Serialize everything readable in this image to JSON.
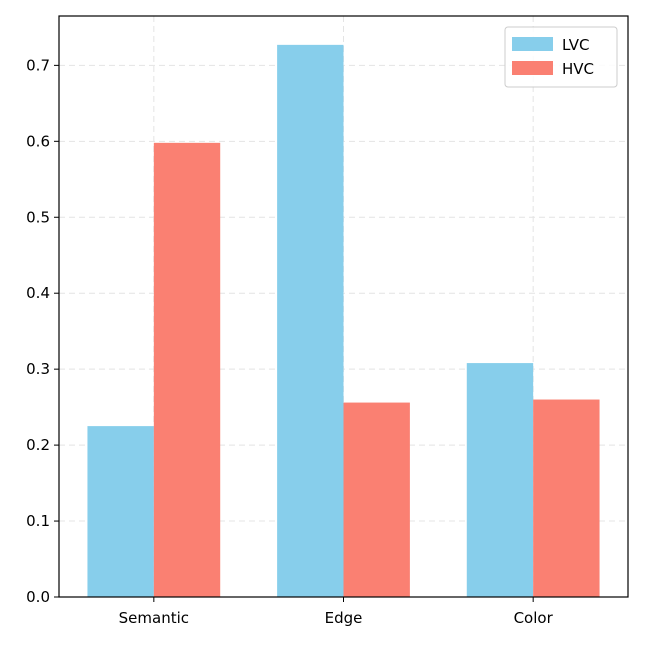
{
  "chart_data": {
    "type": "bar",
    "title": "",
    "xlabel": "",
    "ylabel": "",
    "categories": [
      "Semantic",
      "Edge",
      "Color"
    ],
    "series": [
      {
        "name": "LVC",
        "color": "#87CEEB",
        "values": [
          0.225,
          0.727,
          0.308
        ]
      },
      {
        "name": "HVC",
        "color": "#FA8072",
        "values": [
          0.598,
          0.256,
          0.26
        ]
      }
    ],
    "ylim": [
      0,
      0.765
    ],
    "yticks": [
      0.0,
      0.1,
      0.2,
      0.3,
      0.4,
      0.5,
      0.6,
      0.7
    ],
    "ytick_labels": [
      "0.0",
      "0.1",
      "0.2",
      "0.3",
      "0.4",
      "0.5",
      "0.6",
      "0.7"
    ],
    "grid": true,
    "legend_position": "top-right"
  }
}
